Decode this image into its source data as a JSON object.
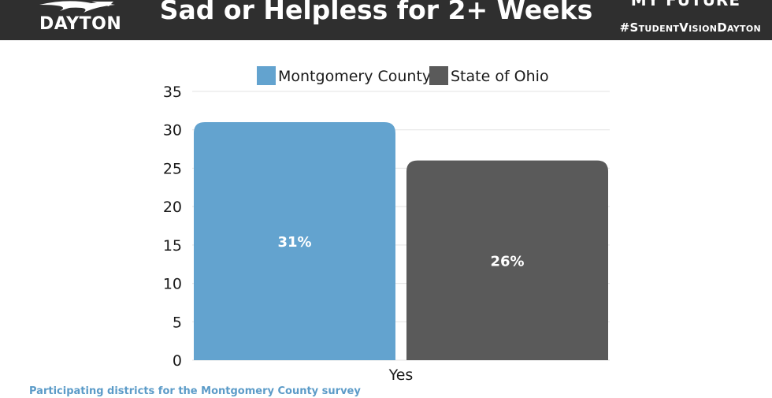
{
  "header": {
    "logo_text": "DAYTON",
    "title": "Sad or Helpless for 2+ Weeks",
    "brand": "MY FUTURE",
    "hashtag": "#StudentVisionDayton"
  },
  "footer_note": "Participating districts for the Montgomery County survey",
  "chart_data": {
    "type": "bar",
    "categories": [
      "Yes"
    ],
    "series": [
      {
        "name": "Montgomery County",
        "values": [
          31
        ],
        "color": "#63a3cf",
        "label": "31%"
      },
      {
        "name": "State of Ohio",
        "values": [
          26
        ],
        "color": "#5a5a5a",
        "label": "26%"
      }
    ],
    "ylim": [
      0,
      35
    ],
    "yticks": [
      "0",
      "5",
      "10",
      "15",
      "20",
      "25",
      "30",
      "35"
    ],
    "grid": true,
    "legend": "top"
  }
}
